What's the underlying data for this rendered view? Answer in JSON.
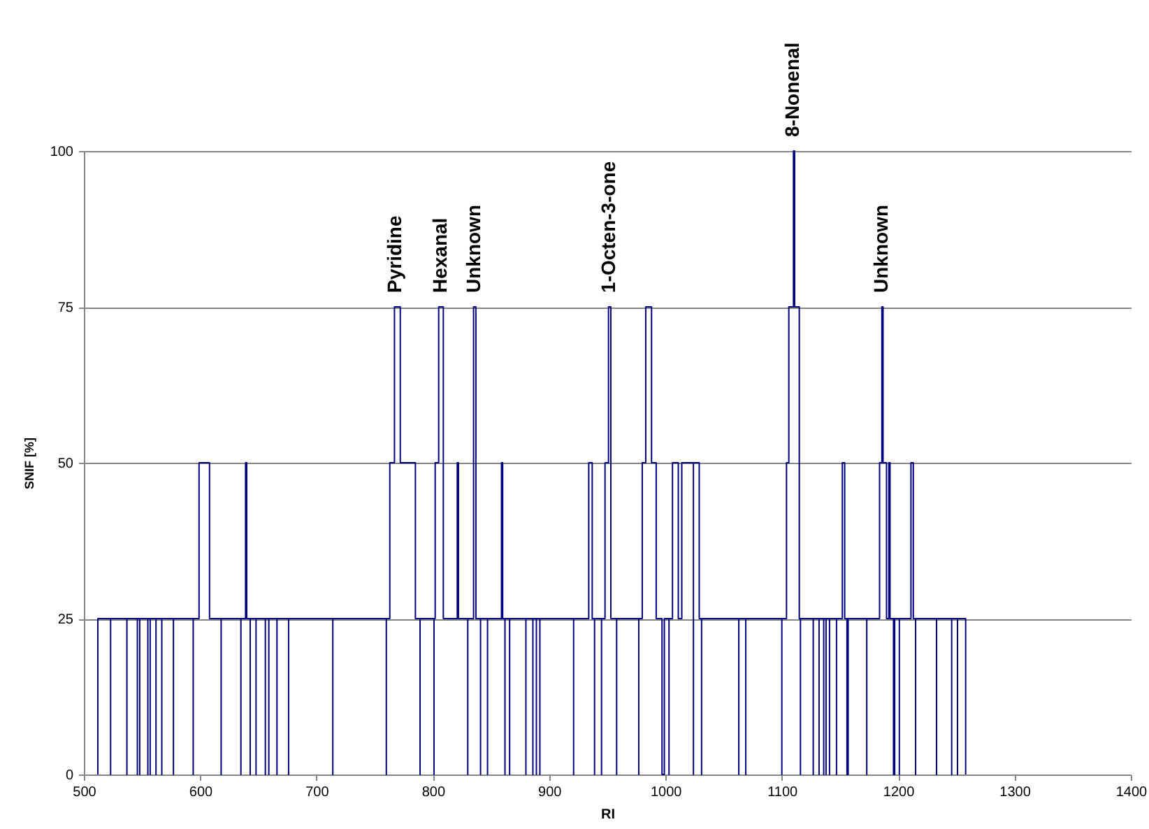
{
  "chart_data": {
    "type": "step",
    "xlabel": "RI",
    "ylabel": "SNIF [%]",
    "x": [
      512,
      512,
      523,
      523,
      537,
      537,
      546,
      546,
      548,
      548,
      555,
      555,
      557,
      557,
      562,
      562,
      567,
      567,
      577,
      577,
      594,
      594,
      599,
      608,
      618,
      618,
      635,
      635,
      639,
      640,
      643,
      643,
      648,
      648,
      656,
      656,
      659,
      659,
      666,
      666,
      676,
      676,
      714,
      714,
      760,
      760,
      763,
      767,
      772,
      785,
      789,
      789,
      801,
      801,
      802,
      805,
      809,
      821,
      822,
      830,
      830,
      835,
      837,
      841,
      841,
      847,
      847,
      859,
      860,
      862,
      862,
      866,
      866,
      880,
      880,
      886,
      886,
      889,
      889,
      892,
      892,
      921,
      921,
      934,
      937,
      939,
      939,
      945,
      945,
      948,
      951,
      953,
      958,
      958,
      977,
      977,
      980,
      983,
      988,
      992,
      997,
      999,
      1003,
      1003,
      1006,
      1011,
      1014,
      1024,
      1024,
      1029,
      1031,
      1031,
      1063,
      1063,
      1069,
      1069,
      1100,
      1100,
      1104,
      1106,
      1110,
      1111,
      1115,
      1116,
      1116,
      1127,
      1127,
      1132,
      1132,
      1136,
      1136,
      1138,
      1138,
      1141,
      1141,
      1147,
      1147,
      1152,
      1154,
      1156,
      1156,
      1157,
      1157,
      1173,
      1173,
      1184,
      1186,
      1187,
      1190,
      1192,
      1193,
      1196,
      1196,
      1197,
      1197,
      1201,
      1201,
      1211,
      1213,
      1215,
      1215,
      1233,
      1233,
      1246,
      1246,
      1251,
      1251,
      1258
    ],
    "series": [
      {
        "color": "#000080",
        "values": [
          0,
          25,
          0,
          25,
          0,
          25,
          0,
          25,
          0,
          25,
          0,
          25,
          0,
          25,
          0,
          25,
          0,
          25,
          0,
          25,
          0,
          25,
          50,
          25,
          0,
          25,
          0,
          25,
          50,
          25,
          0,
          25,
          0,
          25,
          0,
          25,
          0,
          25,
          0,
          25,
          0,
          25,
          0,
          25,
          0,
          25,
          50,
          75,
          50,
          25,
          0,
          25,
          0,
          25,
          50,
          75,
          25,
          50,
          25,
          0,
          25,
          75,
          25,
          0,
          25,
          0,
          25,
          50,
          25,
          0,
          25,
          0,
          25,
          0,
          25,
          0,
          25,
          0,
          25,
          0,
          25,
          0,
          25,
          50,
          25,
          0,
          25,
          0,
          25,
          50,
          75,
          25,
          0,
          25,
          0,
          25,
          50,
          75,
          50,
          25,
          0,
          25,
          0,
          25,
          50,
          25,
          50,
          0,
          50,
          25,
          0,
          25,
          0,
          25,
          0,
          25,
          0,
          25,
          50,
          75,
          100,
          75,
          25,
          0,
          25,
          0,
          25,
          0,
          25,
          0,
          25,
          0,
          25,
          0,
          25,
          0,
          25,
          50,
          25,
          0,
          25,
          0,
          25,
          0,
          25,
          50,
          75,
          50,
          25,
          50,
          25,
          0,
          25,
          0,
          25,
          0,
          25,
          50,
          25,
          0,
          25,
          0,
          25,
          0,
          25,
          0,
          25,
          0
        ]
      }
    ],
    "xlim": [
      500,
      1400
    ],
    "ylim": [
      0,
      100
    ],
    "xticks": [
      500,
      600,
      700,
      800,
      900,
      1000,
      1100,
      1200,
      1300,
      1400
    ],
    "yticks": [
      0,
      25,
      50,
      75,
      100
    ],
    "grid": "y",
    "annotations": [
      {
        "text": "Pyridine",
        "x": 768,
        "y": 75
      },
      {
        "text": "Hexanal",
        "x": 807,
        "y": 75
      },
      {
        "text": "Unknown",
        "x": 836,
        "y": 75
      },
      {
        "text": "1-Octen-3-one",
        "x": 952,
        "y": 75
      },
      {
        "text": "8-Nonenal",
        "x": 1110,
        "y": 100
      },
      {
        "text": "Unknown",
        "x": 1186,
        "y": 75
      }
    ]
  }
}
